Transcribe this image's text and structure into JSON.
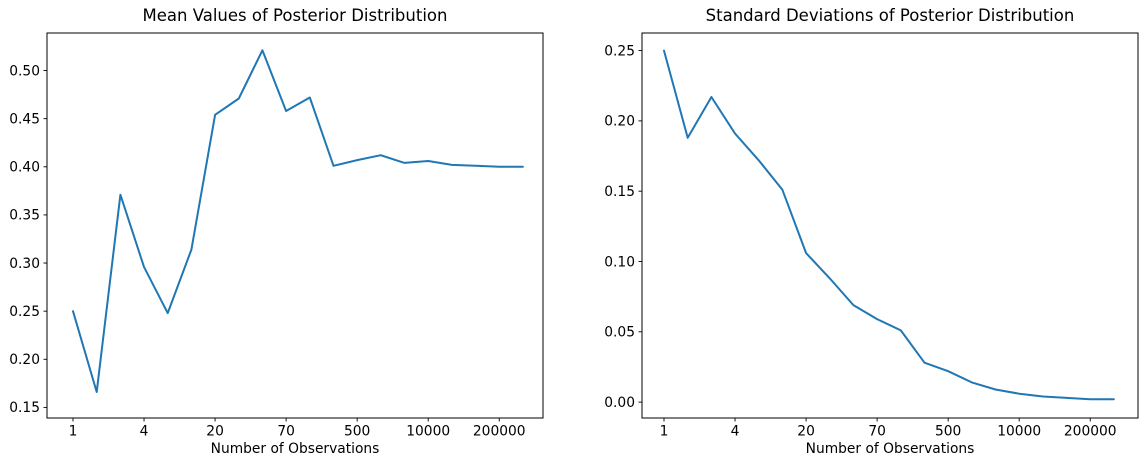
{
  "figure": {
    "background_color": "#ffffff",
    "text_color": "#000000"
  },
  "chart_data": [
    {
      "type": "line",
      "title": "Mean Values of Posterior Distribution",
      "xlabel": "Number of Observations",
      "ylabel": "",
      "line_color": "#1f77b4",
      "legend": "none",
      "grid": false,
      "x_scale": "log-like, labeled tick at every 3rd data point",
      "x_tick_labels": [
        "1",
        "4",
        "20",
        "70",
        "500",
        "10000",
        "200000"
      ],
      "x_ticks_every_n_points": 3,
      "n_points": 20,
      "y_tick_values": [
        0.15,
        0.2,
        0.25,
        0.3,
        0.35,
        0.4,
        0.45,
        0.5
      ],
      "ylim": [
        0.139,
        0.539
      ],
      "values": [
        0.25,
        0.166,
        0.371,
        0.296,
        0.248,
        0.314,
        0.454,
        0.471,
        0.521,
        0.458,
        0.472,
        0.401,
        0.407,
        0.412,
        0.404,
        0.406,
        0.402,
        0.401,
        0.4,
        0.4
      ]
    },
    {
      "type": "line",
      "title": "Standard Deviations of Posterior Distribution",
      "xlabel": "Number of Observations",
      "ylabel": "",
      "line_color": "#1f77b4",
      "legend": "none",
      "grid": false,
      "x_scale": "log-like, labeled tick at every 3rd data point",
      "x_tick_labels": [
        "1",
        "4",
        "20",
        "70",
        "500",
        "10000",
        "200000"
      ],
      "x_ticks_every_n_points": 3,
      "n_points": 20,
      "y_tick_values": [
        0.0,
        0.05,
        0.1,
        0.15,
        0.2,
        0.25
      ],
      "ylim": [
        -0.0113,
        0.2625
      ],
      "values": [
        0.25,
        0.188,
        0.217,
        0.191,
        0.172,
        0.151,
        0.106,
        0.088,
        0.069,
        0.059,
        0.051,
        0.028,
        0.022,
        0.014,
        0.009,
        0.006,
        0.004,
        0.003,
        0.002,
        0.002
      ]
    }
  ]
}
